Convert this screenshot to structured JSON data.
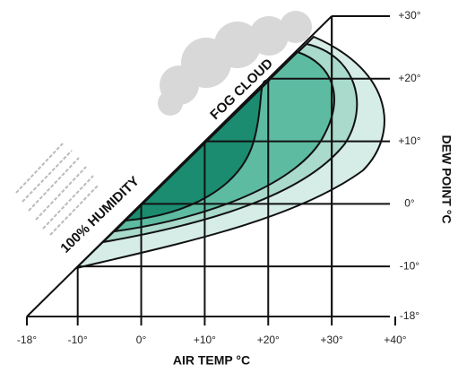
{
  "chart_data": {
    "type": "fog-chart",
    "xlabel": "AIR TEMP °C",
    "ylabel": "DEW POINT °C",
    "annotations": [
      "FOG CLOUD",
      "100% HUMIDITY"
    ],
    "xlim": [
      -18,
      40
    ],
    "ylim": [
      -18,
      30
    ],
    "xticks": [
      {
        "value": -18,
        "label": "-18°"
      },
      {
        "value": -10,
        "label": "-10°"
      },
      {
        "value": 0,
        "label": "0°"
      },
      {
        "value": 10,
        "label": "+10°"
      },
      {
        "value": 20,
        "label": "+20°"
      },
      {
        "value": 30,
        "label": "+30°"
      },
      {
        "value": 40,
        "label": "+40°"
      }
    ],
    "yticks": [
      {
        "value": 30,
        "label": "+30°"
      },
      {
        "value": 20,
        "label": "+20°"
      },
      {
        "value": 10,
        "label": "+10°"
      },
      {
        "value": 0,
        "label": "0°"
      },
      {
        "value": -10,
        "label": "-10°"
      },
      {
        "value": -18,
        "label": "-18°"
      }
    ]
  }
}
